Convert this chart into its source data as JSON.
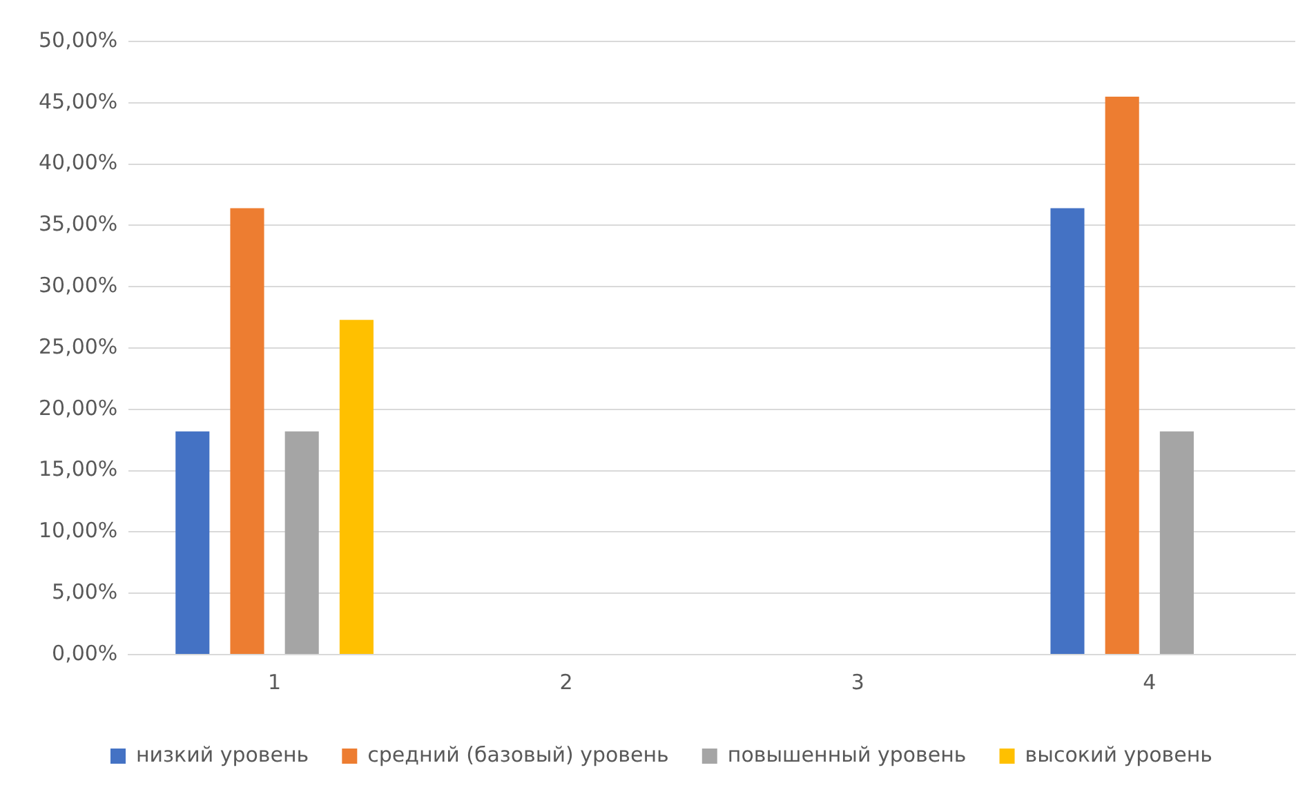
{
  "chart_data": {
    "type": "bar",
    "categories": [
      "1",
      "2",
      "3",
      "4"
    ],
    "series": [
      {
        "name": "низкий уровень",
        "color": "#4472c4",
        "values": [
          18.2,
          0,
          0,
          36.4
        ]
      },
      {
        "name": "средний (базовый) уровень",
        "color": "#ed7d31",
        "values": [
          36.4,
          0,
          0,
          45.5
        ]
      },
      {
        "name": "повышенный уровень",
        "color": "#a5a5a5",
        "values": [
          18.2,
          0,
          0,
          18.2
        ]
      },
      {
        "name": "высокий уровень",
        "color": "#ffc000",
        "values": [
          27.3,
          0,
          0,
          0
        ]
      }
    ],
    "ylim": [
      0,
      50
    ],
    "yticks": [
      {
        "value": 0,
        "label": "0,00%"
      },
      {
        "value": 5,
        "label": "5,00%"
      },
      {
        "value": 10,
        "label": "10,00%"
      },
      {
        "value": 15,
        "label": "15,00%"
      },
      {
        "value": 20,
        "label": "20,00%"
      },
      {
        "value": 25,
        "label": "25,00%"
      },
      {
        "value": 30,
        "label": "30,00%"
      },
      {
        "value": 35,
        "label": "35,00%"
      },
      {
        "value": 40,
        "label": "40,00%"
      },
      {
        "value": 45,
        "label": "45,00%"
      },
      {
        "value": 50,
        "label": "50,00%"
      }
    ],
    "grid": "y",
    "legend": "bottom"
  }
}
